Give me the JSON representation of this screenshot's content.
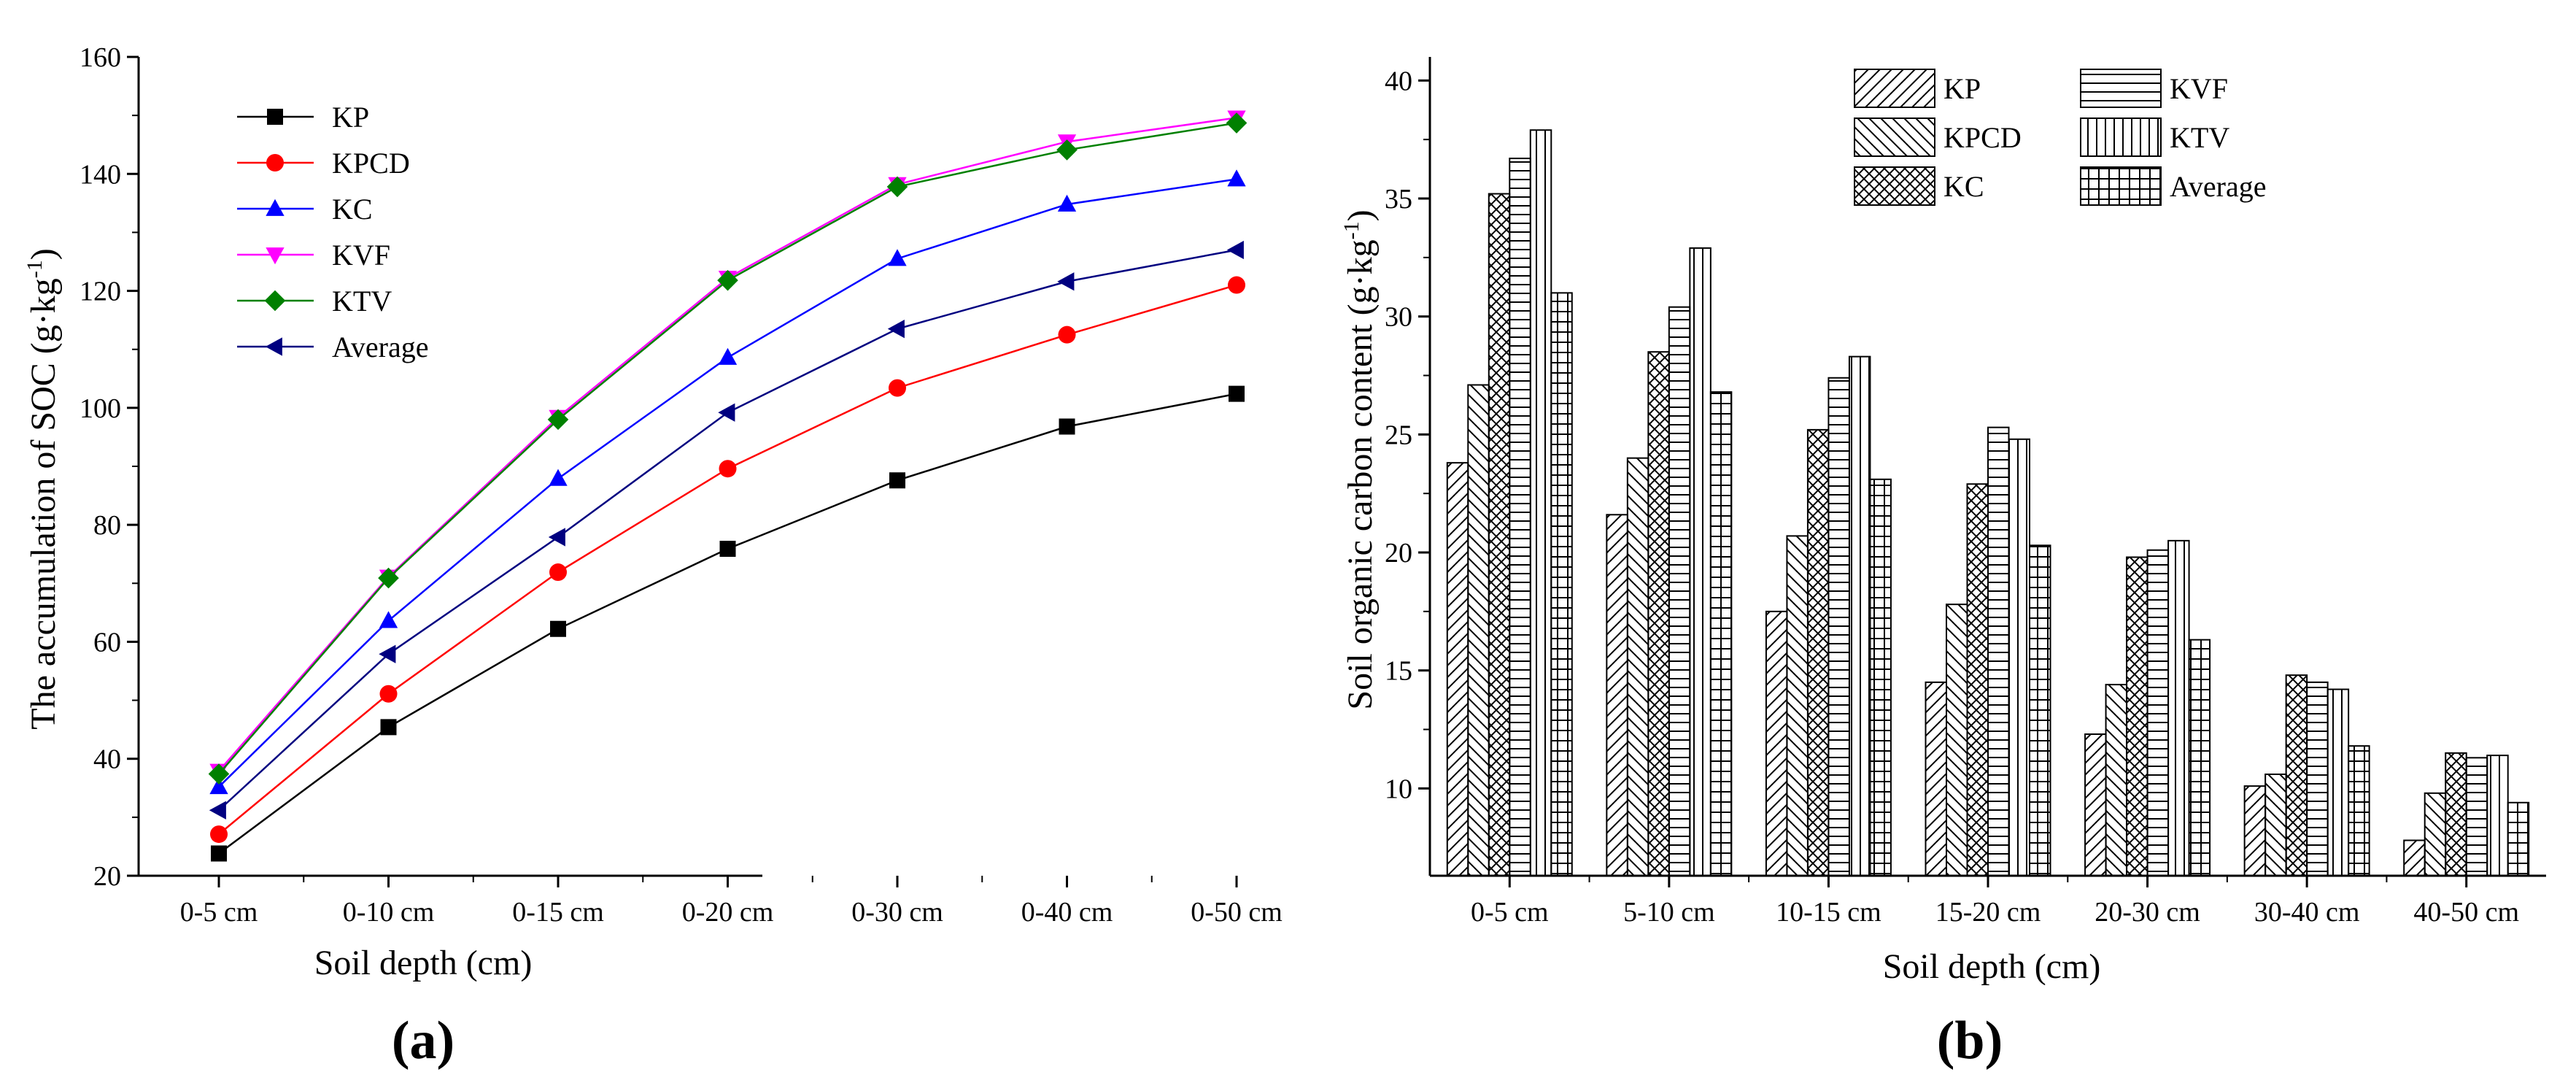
{
  "chart_data": [
    {
      "panel": "(a)",
      "type": "line",
      "title": "",
      "xlabel": "Soil depth (cm)",
      "ylabel": "The accumulation of SOC (g·kg⁻¹)",
      "ylabel_main": "The accumulation of SOC (g·kg",
      "ylabel_sup": "-1",
      "ylabel_close": ")",
      "ylim": [
        20,
        160
      ],
      "yticks": [
        20,
        40,
        60,
        80,
        100,
        120,
        140,
        160
      ],
      "categories": [
        "0-5 cm",
        "0-10 cm",
        "0-15 cm",
        "0-20 cm",
        "0-30 cm",
        "0-40 cm",
        "0-50 cm"
      ],
      "legend_position": "top-left",
      "grid": false,
      "series": [
        {
          "name": "KP",
          "color": "#000000",
          "marker": "square",
          "values": [
            23.8,
            45.4,
            62.2,
            75.9,
            87.6,
            96.8,
            102.4
          ]
        },
        {
          "name": "KPCD",
          "color": "#ff0000",
          "marker": "circle",
          "values": [
            27.1,
            51.1,
            71.9,
            89.6,
            103.4,
            112.5,
            121.0
          ]
        },
        {
          "name": "KC",
          "color": "#0000ff",
          "marker": "triangle-up",
          "values": [
            35.2,
            63.6,
            87.9,
            108.6,
            125.5,
            134.8,
            139.1
          ]
        },
        {
          "name": "KVF",
          "color": "#ff00ff",
          "marker": "triangle-down",
          "values": [
            37.9,
            71.1,
            98.4,
            122.2,
            138.2,
            145.5,
            149.6
          ]
        },
        {
          "name": "KTV",
          "color": "#008000",
          "marker": "diamond",
          "values": [
            37.4,
            70.9,
            98.0,
            121.8,
            137.8,
            144.1,
            148.7
          ]
        },
        {
          "name": "Average",
          "color": "#000080",
          "marker": "triangle-left",
          "values": [
            31.2,
            57.9,
            77.9,
            99.2,
            113.5,
            121.6,
            127.0
          ]
        }
      ]
    },
    {
      "panel": "(b)",
      "type": "bar",
      "title": "",
      "xlabel": "Soil depth (cm)",
      "ylabel": "Soil organic carbon content (g·kg⁻¹)",
      "ylabel_main": "Soil organic carbon content (g·kg",
      "ylabel_sup": "-1",
      "ylabel_close": ")",
      "ylim": [
        6.3,
        41
      ],
      "yticks": [
        10,
        15,
        20,
        25,
        30,
        35,
        40
      ],
      "categories": [
        "0-5 cm",
        "5-10 cm",
        "10-15 cm",
        "15-20 cm",
        "20-30 cm",
        "30-40 cm",
        "40-50 cm"
      ],
      "legend_position": "top-right",
      "grid": false,
      "series": [
        {
          "name": "KP",
          "pattern": "hatch-fwd",
          "values": [
            23.8,
            21.6,
            17.5,
            14.5,
            12.3,
            10.1,
            7.8
          ]
        },
        {
          "name": "KPCD",
          "pattern": "hatch-back",
          "values": [
            27.1,
            24.0,
            20.7,
            17.8,
            14.4,
            10.6,
            9.8
          ]
        },
        {
          "name": "KC",
          "pattern": "crosshatch",
          "values": [
            35.2,
            28.5,
            25.2,
            22.9,
            19.8,
            14.8,
            11.5
          ]
        },
        {
          "name": "KVF",
          "pattern": "horizontal",
          "values": [
            36.7,
            30.4,
            27.4,
            25.3,
            20.1,
            14.5,
            11.3
          ]
        },
        {
          "name": "KTV",
          "pattern": "vertical",
          "values": [
            37.9,
            32.9,
            28.3,
            24.8,
            20.5,
            14.2,
            11.4
          ]
        },
        {
          "name": "Average",
          "pattern": "grid",
          "values": [
            31.0,
            26.8,
            23.1,
            20.3,
            16.3,
            11.8,
            9.4
          ]
        }
      ]
    }
  ]
}
